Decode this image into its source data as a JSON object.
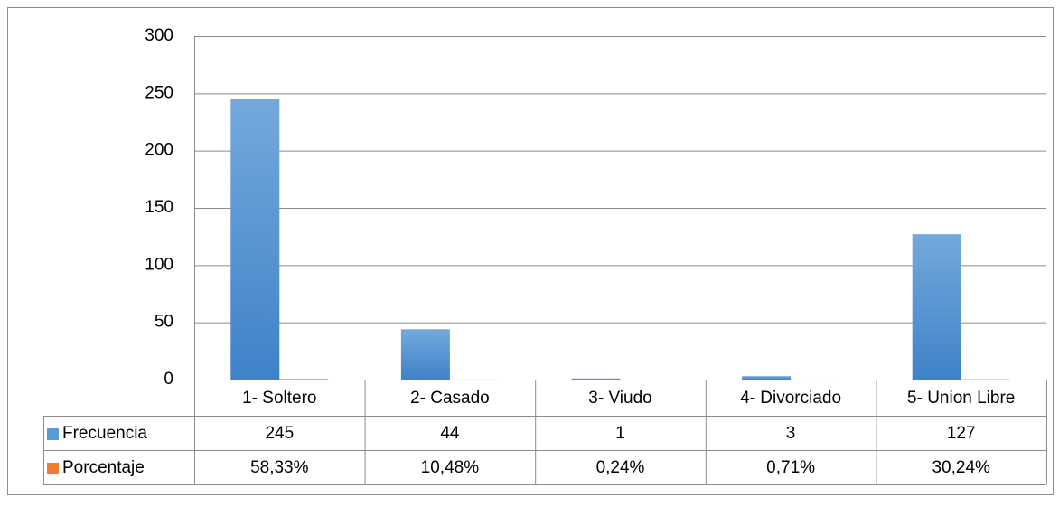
{
  "chart_data": {
    "type": "bar",
    "categories": [
      "1- Soltero",
      "2- Casado",
      "3- Viudo",
      "4- Divorciado",
      "5- Union Libre"
    ],
    "series": [
      {
        "name": "Frecuencia",
        "color": "#5b9bd5",
        "values": [
          245,
          44,
          1,
          3,
          127
        ]
      },
      {
        "name": "Porcentaje",
        "color": "#ed7d31",
        "values": [
          0.5833,
          0.1048,
          0.0024,
          0.0071,
          0.3024
        ],
        "value_labels": [
          "58,33%",
          "10,48%",
          "0,24%",
          "0,71%",
          "30,24%"
        ]
      }
    ],
    "ylim": [
      0,
      300
    ],
    "yticks": [
      0,
      50,
      100,
      150,
      200,
      250,
      300
    ],
    "grid": true,
    "data_table": true
  }
}
